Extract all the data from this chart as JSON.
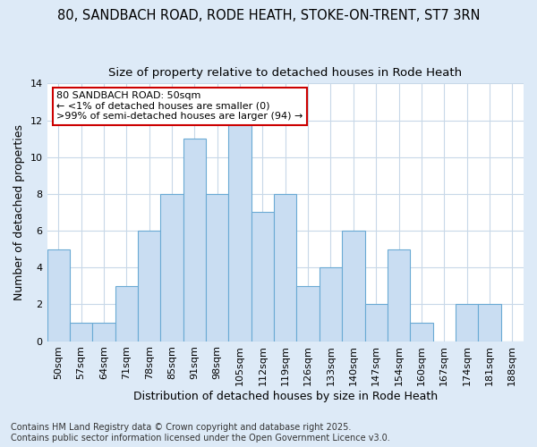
{
  "title": "80, SANDBACH ROAD, RODE HEATH, STOKE-ON-TRENT, ST7 3RN",
  "subtitle": "Size of property relative to detached houses in Rode Heath",
  "xlabel": "Distribution of detached houses by size in Rode Heath",
  "ylabel": "Number of detached properties",
  "bins": [
    "50sqm",
    "57sqm",
    "64sqm",
    "71sqm",
    "78sqm",
    "85sqm",
    "91sqm",
    "98sqm",
    "105sqm",
    "112sqm",
    "119sqm",
    "126sqm",
    "133sqm",
    "140sqm",
    "147sqm",
    "154sqm",
    "160sqm",
    "167sqm",
    "174sqm",
    "181sqm",
    "188sqm"
  ],
  "values": [
    5,
    1,
    1,
    3,
    6,
    8,
    11,
    8,
    12,
    7,
    8,
    3,
    4,
    6,
    2,
    5,
    1,
    0,
    2,
    2,
    0
  ],
  "bar_color": "#c9ddf2",
  "bar_edge_color": "#6aaad4",
  "figure_background_color": "#ddeaf7",
  "axes_background_color": "#ffffff",
  "grid_color": "#c8d8e8",
  "annotation_text": "80 SANDBACH ROAD: 50sqm\n← <1% of detached houses are smaller (0)\n>99% of semi-detached houses are larger (94) →",
  "annotation_box_color": "white",
  "annotation_box_edge_color": "#cc0000",
  "ylim": [
    0,
    14
  ],
  "yticks": [
    0,
    2,
    4,
    6,
    8,
    10,
    12,
    14
  ],
  "footer": "Contains HM Land Registry data © Crown copyright and database right 2025.\nContains public sector information licensed under the Open Government Licence v3.0.",
  "title_fontsize": 10.5,
  "subtitle_fontsize": 9.5,
  "xlabel_fontsize": 9,
  "ylabel_fontsize": 9,
  "tick_fontsize": 8,
  "annotation_fontsize": 8,
  "footer_fontsize": 7
}
